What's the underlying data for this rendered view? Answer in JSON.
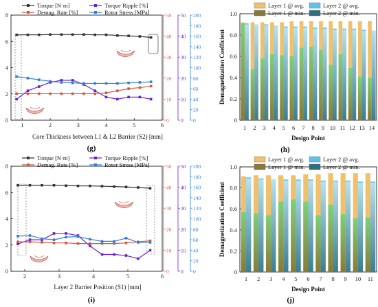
{
  "colors": {
    "torque": "#333333",
    "ripple": "#6a1fd6",
    "demag": "#d9583b",
    "stress": "#2f7fe0",
    "l1_avg": "#f0c06a",
    "l1_min": "#857a3a",
    "l2_avg": "#5cc3f0",
    "l2_min": "#2f6f80",
    "l1_min_light": "#7fd07a",
    "l1_min_dark": "#8a7a35",
    "l2_min_light": "#b9e2ee",
    "l2_min_dark": "#3b7e90"
  },
  "panel_labels": {
    "g": "(g)",
    "h": "(h)",
    "i": "(i)",
    "j": "(j)"
  },
  "chart_data": [
    {
      "id": "g",
      "type": "line",
      "xlabel": "Core Thickness between L1 & L2 Barrier (S2) [mm]",
      "xlim": [
        0.6,
        6
      ],
      "x_ticks": [
        "1",
        "2",
        "3",
        "4",
        "5",
        "6"
      ],
      "axes": [
        {
          "id": "torque",
          "ylim": [
            0,
            8
          ],
          "ticks": [
            "0",
            "2",
            "4",
            "6",
            "8"
          ]
        },
        {
          "id": "rate",
          "ylim": [
            0,
            50
          ],
          "ticks": [
            "0",
            "10",
            "20",
            "30",
            "40",
            "50"
          ]
        },
        {
          "id": "ripple",
          "ylim": [
            0,
            50
          ],
          "ticks": [
            "0",
            "10",
            "20",
            "30",
            "40",
            "50"
          ]
        },
        {
          "id": "stress",
          "ylim": [
            0,
            200
          ],
          "ticks": [
            "0",
            "20",
            "40",
            "60",
            "80",
            "100",
            "120",
            "140",
            "160",
            "180",
            "200"
          ]
        }
      ],
      "legend": [
        "Torque [N·m]",
        "Torque Ripple [%]",
        "Demag. Rate [%]",
        "Rotor Stress [MPa]"
      ],
      "series": [
        {
          "name": "Torque [N·m]",
          "axis": "torque",
          "marker": "square",
          "x": [
            0.8,
            1.2,
            1.6,
            2.0,
            2.4,
            2.8,
            3.2,
            3.6,
            4.0,
            4.4,
            4.8,
            5.2,
            5.6
          ],
          "y": [
            6.5,
            6.5,
            6.5,
            6.52,
            6.52,
            6.52,
            6.52,
            6.5,
            6.5,
            6.45,
            6.42,
            6.38,
            6.3
          ]
        },
        {
          "name": "Torque Ripple [%]",
          "axis": "ripple",
          "marker": "square",
          "x": [
            0.8,
            1.2,
            1.6,
            2.0,
            2.4,
            2.8,
            3.2,
            3.6,
            4.0,
            4.4,
            4.8,
            5.2,
            5.6
          ],
          "y": [
            10,
            14,
            16,
            18,
            19,
            19,
            17,
            14,
            11,
            10,
            11,
            11,
            10
          ]
        },
        {
          "name": "Demag. Rate [%]",
          "axis": "rate",
          "marker": "square",
          "x": [
            0.8,
            1.2,
            1.6,
            2.0,
            2.4,
            2.8,
            3.2,
            3.6,
            4.0,
            4.4,
            4.8,
            5.2,
            5.6
          ],
          "y": [
            12.6,
            12.6,
            12.6,
            12.6,
            12.6,
            12.6,
            12.6,
            12.6,
            13.0,
            14.0,
            15.0,
            15.5,
            16.2
          ]
        },
        {
          "name": "Rotor Stress [MPa]",
          "axis": "stress",
          "marker": "square",
          "x": [
            0.8,
            1.2,
            1.6,
            2.0,
            2.4,
            2.8,
            3.2,
            3.6,
            4.0,
            4.4,
            4.8,
            5.2,
            5.6
          ],
          "y": [
            83,
            80,
            77,
            74,
            72,
            71,
            70,
            70,
            70,
            70,
            71,
            72,
            73
          ]
        }
      ]
    },
    {
      "id": "h",
      "type": "bar",
      "xlabel": "Design Point",
      "ylabel": "Demagnetization Coefficient",
      "ylim": [
        0,
        1.0
      ],
      "y_ticks": [
        "0",
        "0.2",
        "0.4",
        "0.6",
        "0.8",
        "1.0"
      ],
      "categories": [
        "1",
        "2",
        "3",
        "4",
        "5",
        "6",
        "7",
        "8",
        "9",
        "10",
        "11",
        "12",
        "13",
        "14"
      ],
      "legend": [
        "Layer 1 @ avg.",
        "Layer 2 @ avg.",
        "Layer 1 @ min.",
        "Layer 2 @ min."
      ],
      "series": [
        {
          "name": "Layer 1 @ avg.",
          "values": [
            0.92,
            0.92,
            0.92,
            0.92,
            0.92,
            0.93,
            0.93,
            0.93,
            0.93,
            0.93,
            0.93,
            0.93,
            0.93,
            0.93
          ]
        },
        {
          "name": "Layer 2 @ avg.",
          "values": [
            0.91,
            0.9,
            0.9,
            0.89,
            0.88,
            0.88,
            0.88,
            0.87,
            0.87,
            0.86,
            0.86,
            0.86,
            0.85,
            0.84
          ]
        },
        {
          "name": "Layer 1 @ min.",
          "values": [
            0.91,
            0.48,
            0.58,
            0.62,
            0.61,
            0.6,
            0.68,
            0.69,
            0.66,
            0.52,
            0.62,
            0.49,
            0.41,
            0.4
          ]
        },
        {
          "name": "Layer 2 @ min.",
          "values": [
            0.9,
            0.9,
            0.89,
            0.89,
            0.87,
            0.87,
            0.87,
            0.86,
            0.86,
            0.85,
            0.85,
            0.85,
            0.84,
            0.84
          ]
        }
      ]
    },
    {
      "id": "i",
      "type": "line",
      "xlabel": "Layer 2 Barrier Position (S1) [mm]",
      "xlim": [
        1.6,
        6
      ],
      "x_ticks": [
        "2",
        "3",
        "4",
        "5",
        "6"
      ],
      "axes": [
        {
          "id": "torque",
          "ylim": [
            0,
            8
          ],
          "ticks": [
            "0",
            "2",
            "4",
            "6",
            "8"
          ]
        },
        {
          "id": "rate",
          "ylim": [
            0,
            50
          ],
          "ticks": [
            "0",
            "10",
            "20",
            "30",
            "40",
            "50"
          ]
        },
        {
          "id": "ripple",
          "ylim": [
            0,
            50
          ],
          "ticks": [
            "0",
            "10",
            "20",
            "30",
            "40",
            "50"
          ]
        },
        {
          "id": "stress",
          "ylim": [
            0,
            200
          ],
          "ticks": [
            "0",
            "20",
            "40",
            "60",
            "80",
            "100",
            "120",
            "140",
            "160",
            "180",
            "200"
          ]
        }
      ],
      "legend": [
        "Torque [N·m]",
        "Torque Ripple [%]",
        "Demag. Rate [%]",
        "Rotor Stress [MPa]"
      ],
      "series": [
        {
          "name": "Torque [N·m]",
          "axis": "torque",
          "marker": "square",
          "x": [
            1.8,
            2.15,
            2.5,
            2.85,
            3.2,
            3.55,
            3.9,
            4.25,
            4.6,
            4.95,
            5.3,
            5.65
          ],
          "y": [
            6.55,
            6.55,
            6.55,
            6.55,
            6.52,
            6.5,
            6.5,
            6.48,
            6.45,
            6.42,
            6.38,
            6.32
          ]
        },
        {
          "name": "Torque Ripple [%]",
          "axis": "ripple",
          "marker": "square",
          "x": [
            1.8,
            2.15,
            2.5,
            2.85,
            3.2,
            3.55,
            3.9,
            4.25,
            4.6,
            4.95,
            5.3,
            5.65
          ],
          "y": [
            13,
            15,
            15,
            18,
            18,
            17,
            12,
            8,
            8,
            7.5,
            6,
            10
          ]
        },
        {
          "name": "Demag. Rate [%]",
          "axis": "rate",
          "marker": "square",
          "x": [
            1.8,
            2.15,
            2.5,
            2.85,
            3.2,
            3.55,
            3.9,
            4.25,
            4.6,
            4.95,
            5.3,
            5.65
          ],
          "y": [
            14,
            14,
            13.8,
            13.5,
            13.5,
            13.2,
            13.2,
            13.2,
            13.2,
            13.5,
            14,
            14.5
          ]
        },
        {
          "name": "Rotor Stress [MPa]",
          "axis": "stress",
          "marker": "square",
          "x": [
            1.8,
            2.15,
            2.5,
            2.85,
            3.2,
            3.55,
            3.9,
            4.25,
            4.6,
            4.95,
            5.3,
            5.65
          ],
          "y": [
            67,
            68,
            62,
            60,
            65,
            66,
            61,
            57,
            57,
            63,
            55,
            55
          ]
        }
      ]
    },
    {
      "id": "j",
      "type": "bar",
      "xlabel": "Design Point",
      "ylabel": "Demagnetization Coefficient",
      "ylim": [
        0,
        1.0
      ],
      "y_ticks": [
        "0",
        "0.2",
        "0.4",
        "0.6",
        "0.8",
        "1.0"
      ],
      "categories": [
        "1",
        "2",
        "3",
        "4",
        "5",
        "6",
        "7",
        "8",
        "9",
        "10",
        "11"
      ],
      "legend": [
        "Layer 1 @ avg.",
        "Layer 2 @ avg.",
        "Layer 1 @ min.",
        "Layer 2 @ min."
      ],
      "series": [
        {
          "name": "Layer 1 @ avg.",
          "values": [
            0.91,
            0.92,
            0.92,
            0.92,
            0.92,
            0.93,
            0.93,
            0.94,
            0.94,
            0.94,
            0.94
          ]
        },
        {
          "name": "Layer 2 @ avg.",
          "values": [
            0.9,
            0.89,
            0.88,
            0.88,
            0.88,
            0.88,
            0.87,
            0.87,
            0.87,
            0.86,
            0.86
          ]
        },
        {
          "name": "Layer 1 @ min.",
          "values": [
            0.57,
            0.56,
            0.54,
            0.67,
            0.69,
            0.67,
            0.54,
            0.64,
            0.55,
            0.51,
            0.52
          ]
        },
        {
          "name": "Layer 2 @ min.",
          "values": [
            0.89,
            0.88,
            0.88,
            0.87,
            0.87,
            0.87,
            0.86,
            0.86,
            0.86,
            0.85,
            0.85
          ]
        }
      ]
    }
  ]
}
